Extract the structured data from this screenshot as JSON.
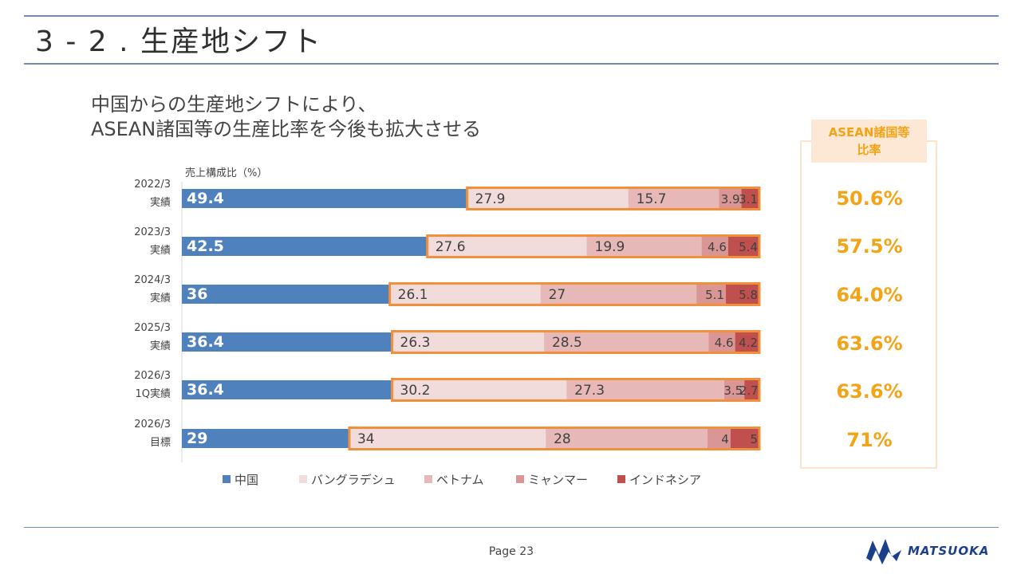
{
  "slide": {
    "title": "3 - 2 . 生産地シフト",
    "subtitle_line1": "中国からの生産地シフトにより、",
    "subtitle_line2": "ASEAN諸国等の生産比率を今後も拡大させる",
    "page": "Page 23",
    "logo_text": "MATSUOKA"
  },
  "ratio_panel": {
    "header_line1": "ASEAN諸国等",
    "header_line2": "比率",
    "values": [
      "50.6%",
      "57.5%",
      "64.0%",
      "63.6%",
      "63.6%",
      "71%"
    ]
  },
  "colors": {
    "china": "#4f81bd",
    "bangladesh": "#f2dcdb",
    "vietnam": "#e6b9b8",
    "myanmar": "#d99694",
    "indonesia": "#c0504d",
    "highlight_border": "#f0903c",
    "accent_text": "#f2a316",
    "rule": "#6f8fb8"
  },
  "chart_data": {
    "type": "bar",
    "orientation": "horizontal",
    "stacked": true,
    "unit_label": "売上構成比（%）",
    "categories": [
      [
        "2022/3",
        "実績"
      ],
      [
        "2023/3",
        "実績"
      ],
      [
        "2024/3",
        "実績"
      ],
      [
        "2025/3",
        "実績"
      ],
      [
        "2026/3",
        "1Q実績"
      ],
      [
        "2026/3",
        "目標"
      ]
    ],
    "series": [
      {
        "name": "中国",
        "values": [
          49.4,
          42.5,
          36,
          36.4,
          36.4,
          29
        ]
      },
      {
        "name": "バングラデシュ",
        "values": [
          27.9,
          27.6,
          26.1,
          26.3,
          30.2,
          34
        ]
      },
      {
        "name": "ベトナム",
        "values": [
          15.7,
          19.9,
          27,
          28.5,
          27.3,
          28
        ]
      },
      {
        "name": "ミャンマー",
        "values": [
          3.9,
          4.6,
          5.1,
          4.6,
          3.5,
          4
        ]
      },
      {
        "name": "インドネシア",
        "values": [
          3.1,
          5.4,
          5.8,
          4.2,
          2.7,
          5
        ]
      }
    ],
    "xlim": [
      0,
      100
    ],
    "legend": "bottom",
    "grid": false
  }
}
